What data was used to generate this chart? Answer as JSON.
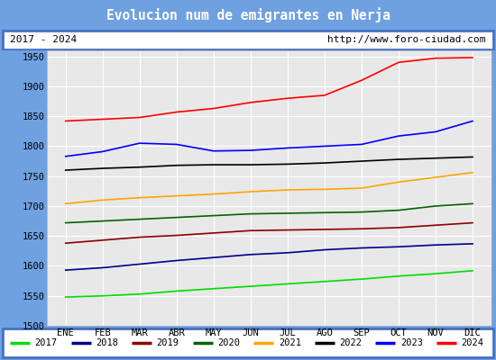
{
  "title": "Evolucion num de emigrantes en Nerja",
  "subtitle_left": "2017 - 2024",
  "subtitle_right": "http://www.foro-ciudad.com",
  "x_labels": [
    "ENE",
    "FEB",
    "MAR",
    "ABR",
    "MAY",
    "JUN",
    "JUL",
    "AGO",
    "SEP",
    "OCT",
    "NOV",
    "DIC"
  ],
  "ylim": [
    1500,
    1960
  ],
  "yticks": [
    1500,
    1550,
    1600,
    1650,
    1700,
    1750,
    1800,
    1850,
    1900,
    1950
  ],
  "series": {
    "2017": {
      "color": "#00dd00",
      "data": [
        1548,
        1550,
        1553,
        1558,
        1562,
        1566,
        1570,
        1574,
        1578,
        1583,
        1587,
        1592
      ]
    },
    "2018": {
      "color": "#00008b",
      "data": [
        1593,
        1597,
        1603,
        1609,
        1614,
        1619,
        1622,
        1627,
        1630,
        1632,
        1635,
        1637
      ]
    },
    "2019": {
      "color": "#8b0000",
      "data": [
        1638,
        1643,
        1648,
        1651,
        1655,
        1659,
        1660,
        1661,
        1662,
        1664,
        1668,
        1672
      ]
    },
    "2020": {
      "color": "#006400",
      "data": [
        1672,
        1675,
        1678,
        1681,
        1684,
        1687,
        1688,
        1689,
        1690,
        1693,
        1700,
        1704
      ]
    },
    "2021": {
      "color": "#ffa500",
      "data": [
        1704,
        1710,
        1714,
        1717,
        1720,
        1724,
        1727,
        1728,
        1730,
        1740,
        1748,
        1756
      ]
    },
    "2022": {
      "color": "#000000",
      "data": [
        1760,
        1763,
        1765,
        1768,
        1769,
        1769,
        1770,
        1772,
        1775,
        1778,
        1780,
        1782
      ]
    },
    "2023": {
      "color": "#0000ff",
      "data": [
        1783,
        1791,
        1805,
        1803,
        1792,
        1793,
        1797,
        1800,
        1803,
        1817,
        1824,
        1842
      ]
    },
    "2024": {
      "color": "#ff0000",
      "data": [
        1842,
        1845,
        1848,
        1857,
        1863,
        1873,
        1880,
        1885,
        1910,
        1940,
        1947,
        1948
      ]
    }
  },
  "title_bg": "#5b8dd9",
  "title_color": "#ffffff",
  "plot_bg": "#e8e8e8",
  "border_color": "#4472c4",
  "fig_bg": "#6fa0e0"
}
